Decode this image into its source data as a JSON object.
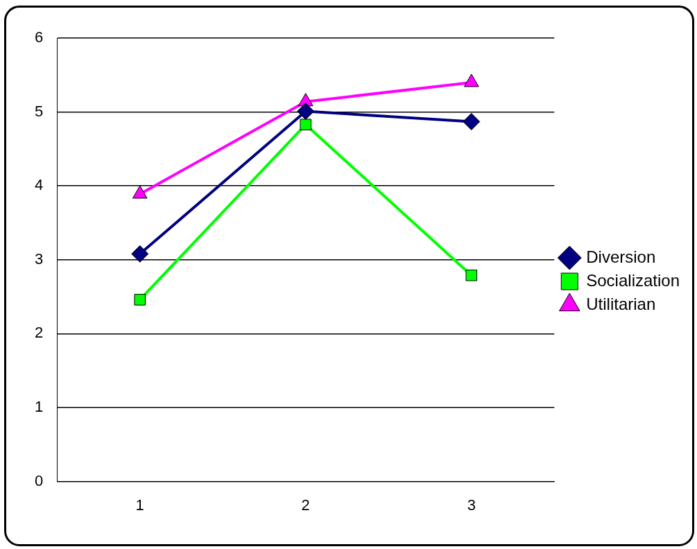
{
  "chart_data": {
    "type": "line",
    "categories": [
      "1",
      "2",
      "3"
    ],
    "series": [
      {
        "name": "Diversion",
        "color": "#000080",
        "marker": "diamond",
        "values": [
          3.08,
          5.01,
          4.87
        ]
      },
      {
        "name": "Socialization",
        "color": "#00ff00",
        "marker": "square",
        "values": [
          2.46,
          4.83,
          2.79
        ]
      },
      {
        "name": "Utilitarian",
        "color": "#ff00ff",
        "marker": "triangle",
        "values": [
          3.89,
          5.14,
          5.4
        ]
      }
    ],
    "ylim": [
      0,
      6
    ],
    "yticks": [
      0,
      1,
      2,
      3,
      4,
      5,
      6
    ],
    "grid": "y",
    "legend": "right"
  }
}
